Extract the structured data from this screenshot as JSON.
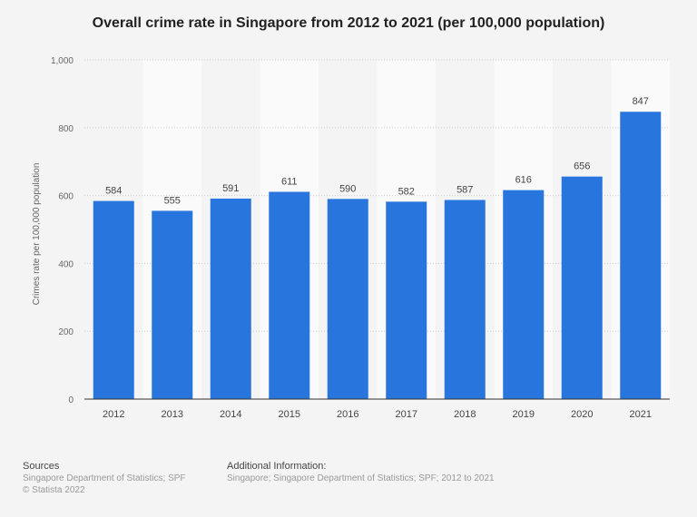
{
  "chart_data": {
    "type": "bar",
    "title": "Overall crime rate in Singapore from 2012 to 2021 (per 100,000 population)",
    "xlabel": "",
    "ylabel": "Crimes rate per 100,000 population",
    "categories": [
      "2012",
      "2013",
      "2014",
      "2015",
      "2016",
      "2017",
      "2018",
      "2019",
      "2020",
      "2021"
    ],
    "values": [
      584,
      555,
      591,
      611,
      590,
      582,
      587,
      616,
      656,
      847
    ],
    "ylim": [
      0,
      1000
    ],
    "yticks": [
      0,
      200,
      400,
      600,
      800,
      1000
    ],
    "ytick_labels": [
      "0",
      "200",
      "400",
      "600",
      "800",
      "1,000"
    ],
    "grid": true,
    "bar_color": "#2876dd"
  },
  "footer": {
    "sources_heading": "Sources",
    "sources_text": "Singapore Department of Statistics; SPF",
    "copyright": "© Statista 2022",
    "additional_heading": "Additional Information:",
    "additional_text": "Singapore; Singapore Department of Statistics; SPF; 2012 to 2021"
  }
}
